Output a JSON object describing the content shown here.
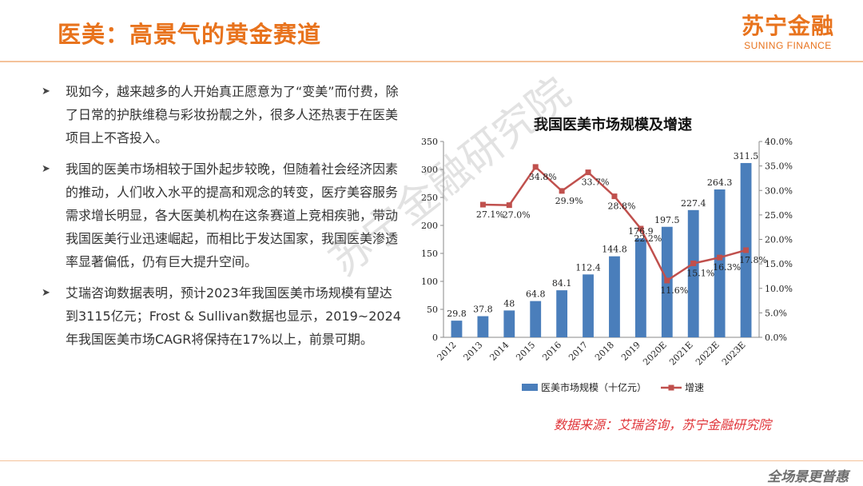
{
  "header": {
    "title": "医美：高景气的黄金赛道",
    "logo_cn": "苏宁金融",
    "logo_en": "SUNING FINANCE"
  },
  "bullets": [
    "现如今，越来越多的人开始真正愿意为了“变美”而付费，除了日常的护肤维稳与彩妆扮靓之外，很多人还热衷于在医美项目上不吝投入。",
    "我国的医美市场相较于国外起步较晚，但随着社会经济因素的推动，人们收入水平的提高和观念的转变，医疗美容服务需求增长明显，各大医美机构在这条赛道上竞相疾驰，带动我国医美行业迅速崛起，而相比于发达国家，我国医美渗透率显著偏低，仍有巨大提升空间。",
    "艾瑞咨询数据表明，预计2023年我国医美市场规模有望达到3115亿元；Frost & Sullivan数据也显示，2019~2024年我国医美市场CAGR将保持在17%以上，前景可期。"
  ],
  "bullet_icon": "arrow-right-icon",
  "chart_data": {
    "type": "bar",
    "title": "我国医美市场规模及增速",
    "categories": [
      "2012",
      "2013",
      "2014",
      "2015",
      "2016",
      "2017",
      "2018",
      "2019",
      "2020E",
      "2021E",
      "2022E",
      "2023E"
    ],
    "series": [
      {
        "name": "医美市场规模（十亿元）",
        "type": "bar",
        "axis": "left",
        "color": "#4a7ebb",
        "values": [
          29.8,
          37.8,
          48,
          64.8,
          84.1,
          112.4,
          144.8,
          176.9,
          197.5,
          227.4,
          264.3,
          311.5
        ],
        "labels": [
          "29.8",
          "37.8",
          "48",
          "64.8",
          "84.1",
          "112.4",
          "144.8",
          "176.9",
          "197.5",
          "227.4",
          "264.3",
          "311.5"
        ]
      },
      {
        "name": "增速",
        "type": "line",
        "axis": "right",
        "color": "#c0504d",
        "values": [
          null,
          27.1,
          27.0,
          34.8,
          29.9,
          33.7,
          28.8,
          22.2,
          11.6,
          15.1,
          16.3,
          17.8
        ],
        "labels": [
          "",
          "27.1%",
          "27.0%",
          "34.8%",
          "29.9%",
          "33.7%",
          "28.8%",
          "22.2%",
          "11.6%",
          "15.1%",
          "16.3%",
          "17.8%"
        ]
      }
    ],
    "y_left": {
      "min": 0,
      "max": 350,
      "ticks": [
        "0",
        "50",
        "100",
        "150",
        "200",
        "250",
        "300",
        "350"
      ]
    },
    "y_right": {
      "min": 0,
      "max": 40,
      "ticks": [
        "0.0%",
        "5.0%",
        "10.0%",
        "15.0%",
        "20.0%",
        "25.0%",
        "30.0%",
        "35.0%",
        "40.0%"
      ]
    },
    "legend_position": "bottom",
    "grid": false
  },
  "source": "数据来源：艾瑞咨询，苏宁金融研究院",
  "watermark": "苏宁金融研究院",
  "footer_logo": "全场景更普惠"
}
